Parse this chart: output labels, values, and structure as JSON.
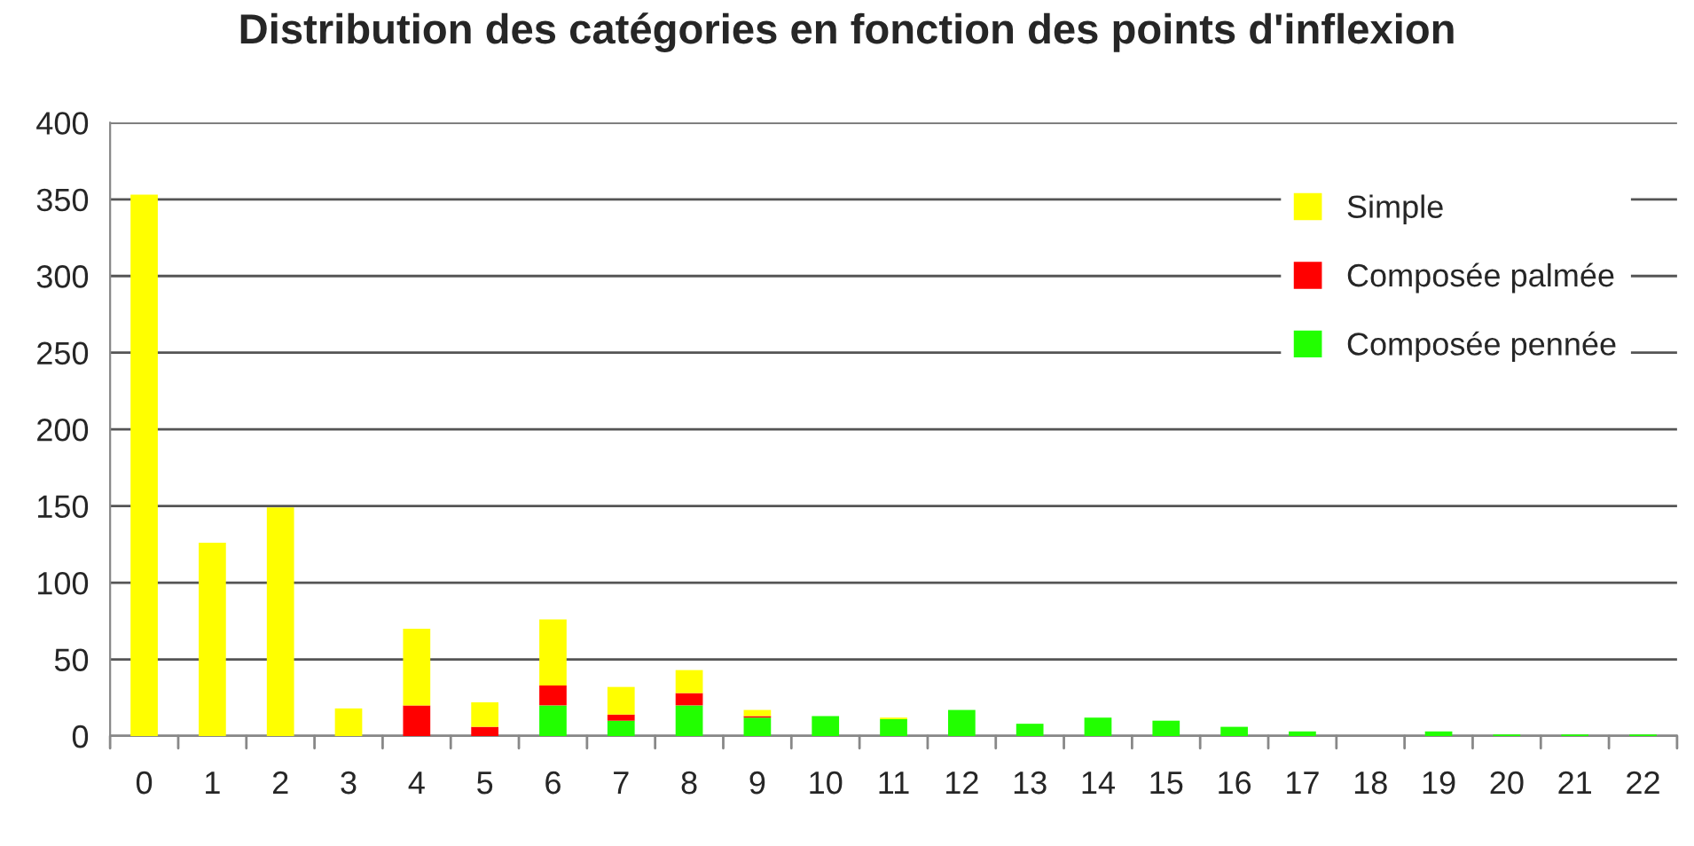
{
  "chart_data": {
    "type": "bar",
    "stacked": true,
    "title": "Distribution des catégories en fonction des points d'inflexion",
    "categories": [
      "0",
      "1",
      "2",
      "3",
      "4",
      "5",
      "6",
      "7",
      "8",
      "9",
      "10",
      "11",
      "12",
      "13",
      "14",
      "15",
      "16",
      "17",
      "18",
      "19",
      "20",
      "21",
      "22"
    ],
    "series": [
      {
        "name": "Composée pennée",
        "color": "#22ff00",
        "values": [
          0,
          0,
          0,
          0,
          0,
          0,
          20,
          10,
          20,
          12,
          13,
          11,
          17,
          8,
          12,
          10,
          6,
          3,
          0,
          3,
          1,
          1,
          1
        ]
      },
      {
        "name": "Composée palmée",
        "color": "#ff0000",
        "values": [
          0,
          0,
          0,
          0,
          20,
          6,
          13,
          4,
          8,
          1,
          0,
          0,
          0,
          0,
          0,
          0,
          0,
          0,
          0,
          0,
          0,
          0,
          0
        ]
      },
      {
        "name": "Simple",
        "color": "#ffff00",
        "values": [
          353,
          126,
          149,
          18,
          50,
          16,
          43,
          18,
          15,
          4,
          0,
          1,
          0,
          0,
          0,
          0,
          0,
          0,
          0,
          0,
          0,
          0,
          0
        ]
      }
    ],
    "ylim": [
      0,
      400
    ],
    "yticks": [
      0,
      50,
      100,
      150,
      200,
      250,
      300,
      350,
      400
    ],
    "grid": "y",
    "legend": "top right"
  }
}
